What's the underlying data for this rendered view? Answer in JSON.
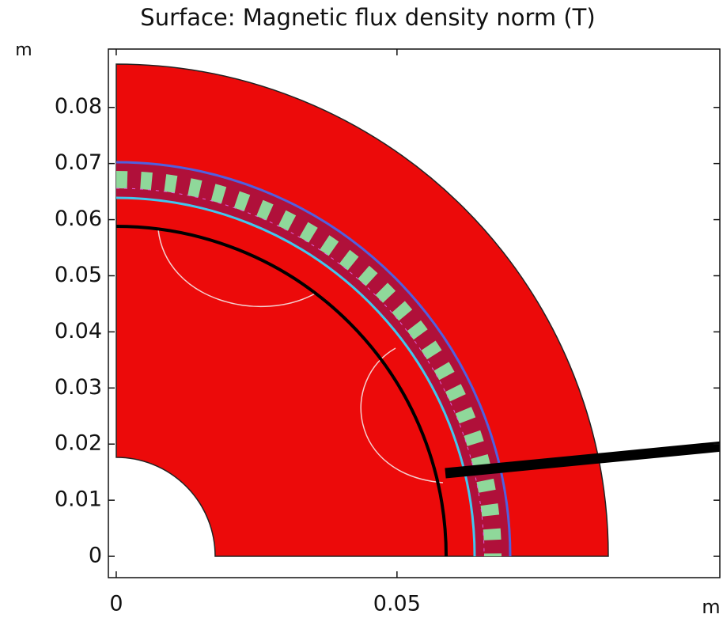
{
  "chart_data": {
    "type": "surface",
    "title": "Surface: Magnetic flux density norm (T)",
    "xlabel": "m",
    "ylabel": "m",
    "xlim": [
      -0.0014,
      0.1075
    ],
    "ylim": [
      -0.0038,
      0.0904
    ],
    "xticks": [
      0,
      0.05
    ],
    "yticks": [
      0,
      0.01,
      0.02,
      0.03,
      0.04,
      0.05,
      0.06,
      0.07,
      0.08
    ]
  }
}
